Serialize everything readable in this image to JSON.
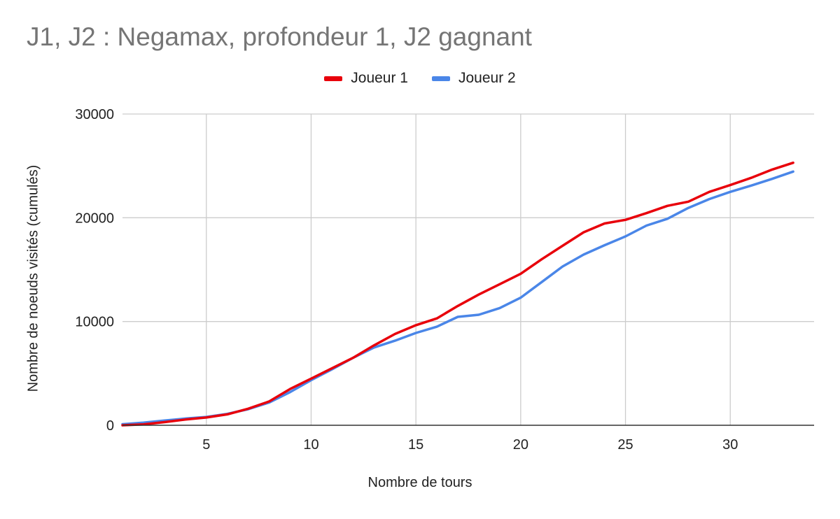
{
  "chart_data": {
    "type": "line",
    "title": "J1, J2 : Negamax, profondeur 1, J2 gagnant",
    "xlabel": "Nombre de tours",
    "ylabel": "Nombre de noeuds visités (cumulés)",
    "xlim": [
      1,
      34
    ],
    "ylim": [
      0,
      30000
    ],
    "x_ticks": [
      5,
      10,
      15,
      20,
      25,
      30
    ],
    "y_ticks": [
      0,
      10000,
      20000,
      30000
    ],
    "grid": true,
    "legend_position": "top",
    "x": [
      1,
      2,
      3,
      4,
      5,
      6,
      7,
      8,
      9,
      10,
      11,
      12,
      13,
      14,
      15,
      16,
      17,
      18,
      19,
      20,
      21,
      22,
      23,
      24,
      25,
      26,
      27,
      28,
      29,
      30,
      31,
      32,
      33
    ],
    "series": [
      {
        "name": "Joueur 1",
        "color": "#e8000b",
        "values": [
          0,
          80,
          300,
          550,
          750,
          1050,
          1600,
          2300,
          3500,
          4500,
          5500,
          6500,
          7700,
          8800,
          9650,
          10300,
          11500,
          12600,
          13600,
          14600,
          16000,
          17300,
          18600,
          19450,
          19800,
          20450,
          21150,
          21550,
          22500,
          23150,
          23850,
          24650,
          25300
        ]
      },
      {
        "name": "Joueur 2",
        "color": "#4a86e8",
        "values": [
          100,
          250,
          450,
          650,
          800,
          1100,
          1550,
          2200,
          3200,
          4350,
          5400,
          6500,
          7500,
          8150,
          8900,
          9500,
          10450,
          10650,
          11300,
          12300,
          13800,
          15300,
          16450,
          17350,
          18200,
          19250,
          19900,
          20950,
          21800,
          22500,
          23100,
          23750,
          24450
        ]
      }
    ]
  }
}
